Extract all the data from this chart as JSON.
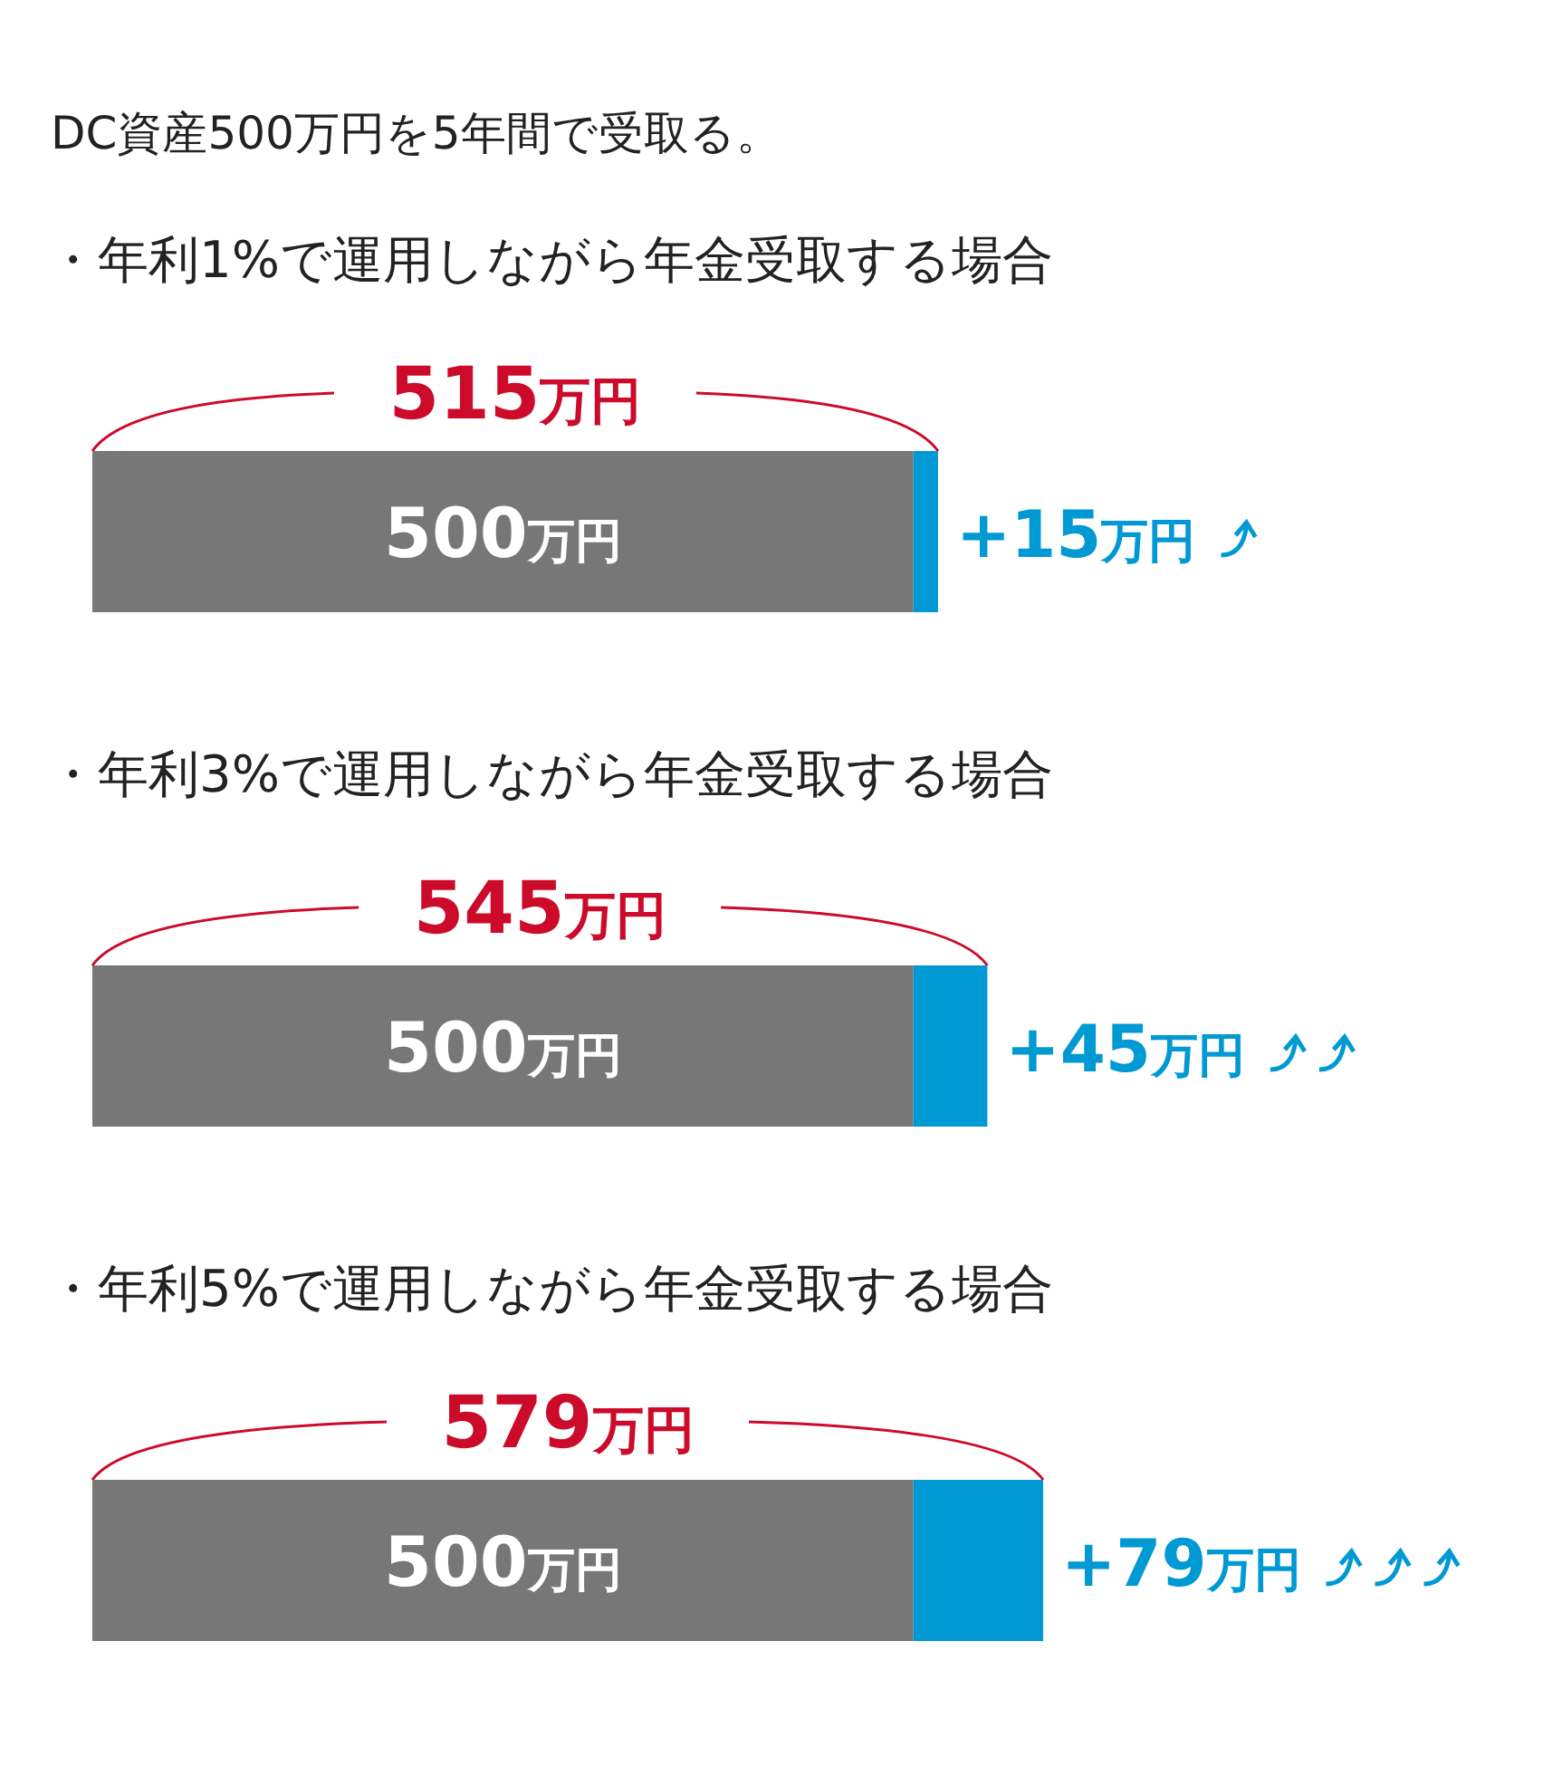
{
  "chart_data": {
    "type": "bar",
    "orientation": "horizontal",
    "stacked": true,
    "title": "DC資産500万円を5年間で受取る。",
    "categories": [
      "・年利1%で運用しながら年金受取する場合",
      "・年利3%で運用しながら年金受取する場合",
      "・年利5%で運用しながら年金受取する場合"
    ],
    "series": [
      {
        "color": "#777777",
        "values": [
          500,
          500,
          500
        ],
        "value_labels": [
          "500万円",
          "500万円",
          "500万円"
        ]
      },
      {
        "color": "#0099d4",
        "values": [
          15,
          45,
          79
        ],
        "value_labels": [
          "+15万円",
          "+45万円",
          "+79万円"
        ]
      }
    ],
    "totals": [
      "515万円",
      "545万円",
      "579万円"
    ]
  }
}
